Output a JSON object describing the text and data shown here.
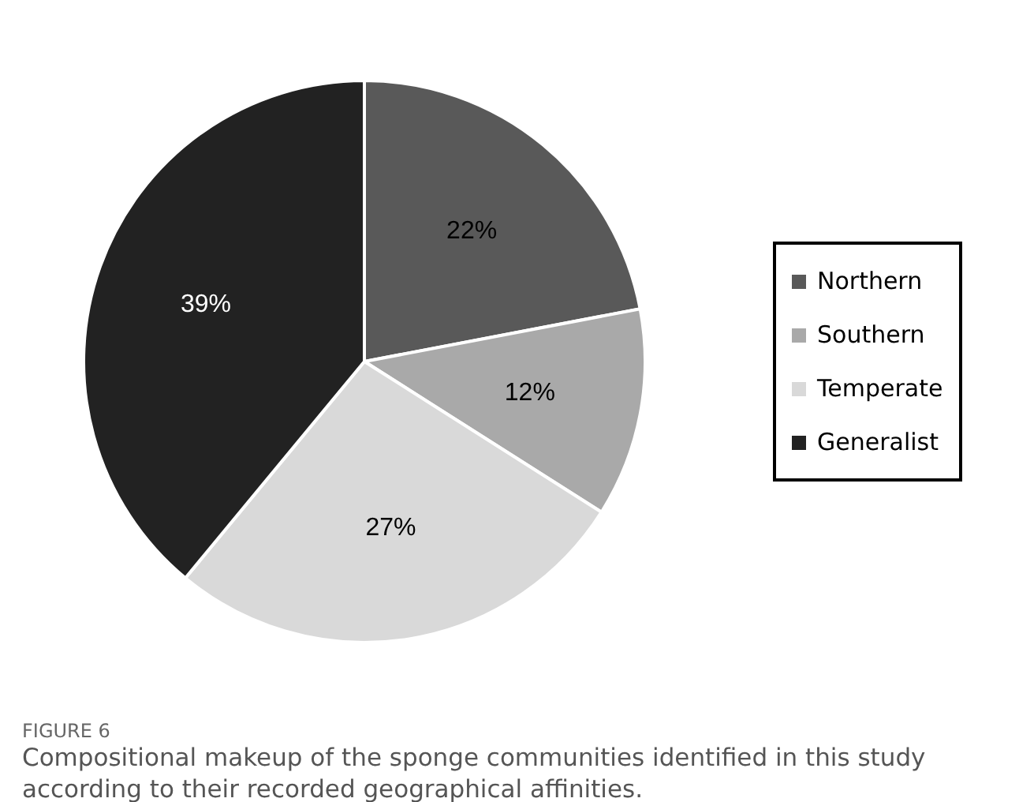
{
  "chart_data": {
    "type": "pie",
    "categories": [
      "Northern",
      "Southern",
      "Temperate",
      "Generalist"
    ],
    "values": [
      22,
      12,
      27,
      39
    ],
    "colors": [
      "#595959",
      "#a9a9a9",
      "#d9d9d9",
      "#222222"
    ],
    "value_labels": [
      "22%",
      "12%",
      "27%",
      "39%"
    ],
    "legend": "right",
    "annotations": [
      "FIGURE 6",
      "Compositional makeup of the sponge communities identified in this study according to their recorded geographical affinities."
    ]
  }
}
